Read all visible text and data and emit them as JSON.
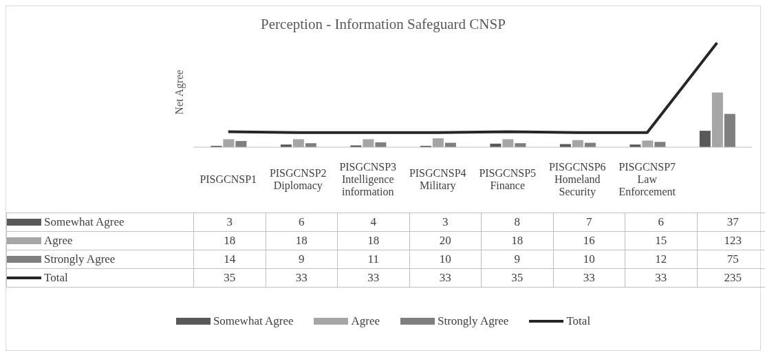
{
  "chart_data": {
    "type": "bar",
    "title": "Perception - Information Safeguard CNSP",
    "ylabel": "Net Agree",
    "categories": [
      "PISGCNSP1",
      "PISGCNSP2 Diplomacy",
      "PISGCNSP3 Intelligence information",
      "PISGCNSP4 Military",
      "PISGCNSP5 Finance",
      "PISGCNSP6 Homeland Security",
      "PISGCNSP7 Law Enforcement",
      null
    ],
    "series": [
      {
        "name": "Somewhat Agree",
        "color": "#595959",
        "values": [
          3,
          6,
          4,
          3,
          8,
          7,
          6,
          37
        ]
      },
      {
        "name": "Agree",
        "color": "#a6a6a6",
        "values": [
          18,
          18,
          18,
          20,
          18,
          16,
          15,
          123
        ]
      },
      {
        "name": "Strongly Agree",
        "color": "#7f7f7f",
        "values": [
          14,
          9,
          11,
          10,
          9,
          10,
          12,
          75
        ]
      },
      {
        "name": "Total",
        "type": "line",
        "color": "#262626",
        "values": [
          35,
          33,
          33,
          33,
          35,
          33,
          33,
          235
        ]
      }
    ],
    "tick_labels": "x",
    "legend": "bottom",
    "data_labels": true,
    "marker": "none",
    "line_style": "solid"
  }
}
